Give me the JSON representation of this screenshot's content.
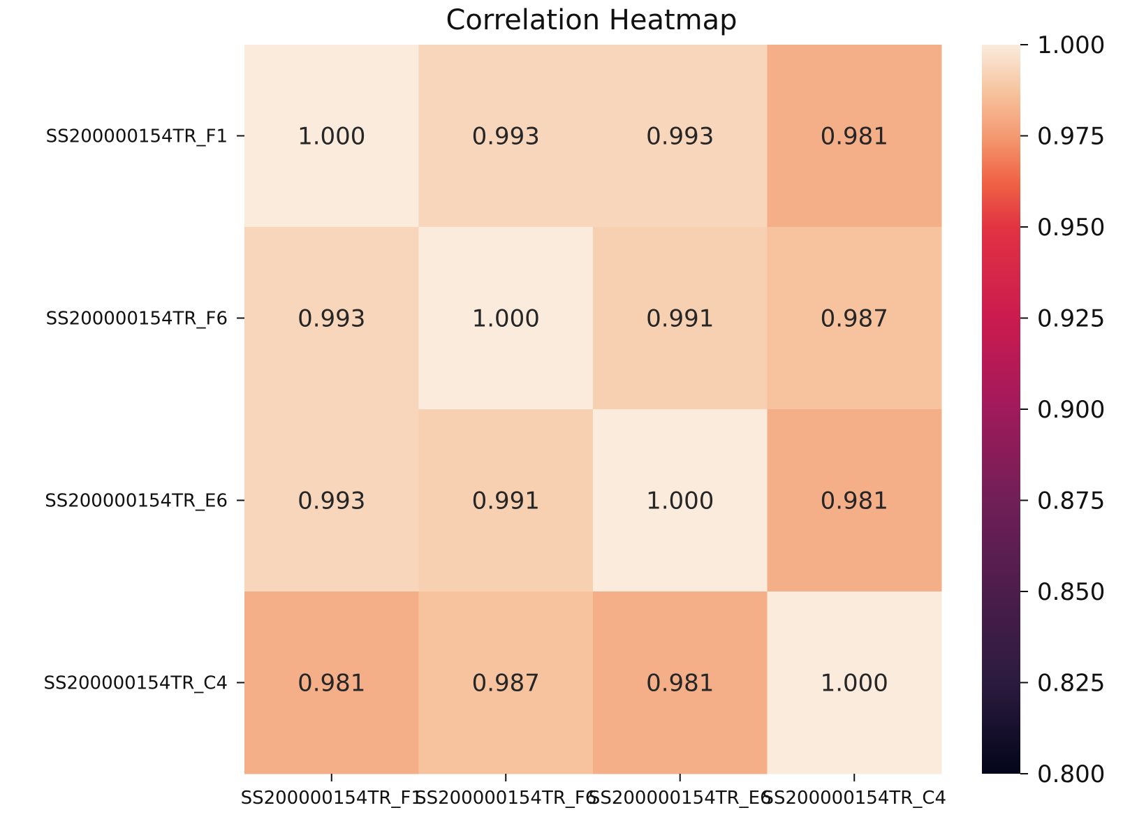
{
  "chart_data": {
    "type": "heatmap",
    "title": "Correlation Heatmap",
    "row_labels": [
      "SS200000154TR_F1",
      "SS200000154TR_F6",
      "SS200000154TR_E6",
      "SS200000154TR_C4"
    ],
    "col_labels": [
      "SS200000154TR_F1",
      "SS200000154TR_F6",
      "SS200000154TR_E6",
      "SS200000154TR_C4"
    ],
    "values": [
      [
        1.0,
        0.993,
        0.993,
        0.981
      ],
      [
        0.993,
        1.0,
        0.991,
        0.987
      ],
      [
        0.993,
        0.991,
        1.0,
        0.981
      ],
      [
        0.981,
        0.987,
        0.981,
        1.0
      ]
    ],
    "value_format": "0.000",
    "colorbar": {
      "vmin": 0.8,
      "vmax": 1.0,
      "ticks": [
        "0.800",
        "0.825",
        "0.850",
        "0.875",
        "0.900",
        "0.925",
        "0.950",
        "0.975",
        "1.000"
      ],
      "colormap": "rocket"
    },
    "grid": false
  }
}
